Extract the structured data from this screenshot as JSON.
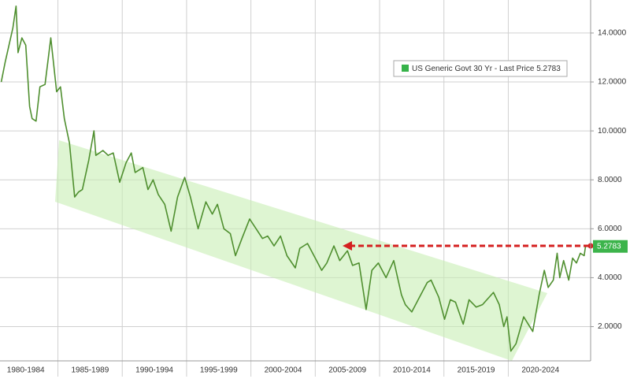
{
  "chart_data": {
    "type": "line",
    "x": [
      1980.6,
      1980.9,
      1981.2,
      1981.5,
      1981.75,
      1981.9,
      1982.2,
      1982.5,
      1982.8,
      1983.0,
      1983.3,
      1983.6,
      1984.0,
      1984.45,
      1984.9,
      1985.2,
      1985.5,
      1985.9,
      1986.3,
      1986.6,
      1986.9,
      1987.4,
      1987.8,
      1987.95,
      1988.5,
      1988.9,
      1989.3,
      1989.8,
      1990.3,
      1990.7,
      1991.0,
      1991.6,
      1992.0,
      1992.4,
      1992.8,
      1993.3,
      1993.8,
      1994.3,
      1994.85,
      1995.3,
      1995.9,
      1996.5,
      1997.0,
      1997.4,
      1997.9,
      1998.4,
      1998.8,
      1999.3,
      1999.9,
      2000.4,
      2000.9,
      2001.3,
      2001.8,
      2002.3,
      2002.8,
      2003.45,
      2003.8,
      2004.4,
      2004.9,
      2005.5,
      2005.9,
      2006.45,
      2006.9,
      2007.5,
      2007.9,
      2008.4,
      2008.95,
      2009.4,
      2009.9,
      2010.5,
      2011.1,
      2011.7,
      2012.0,
      2012.5,
      2013.0,
      2013.7,
      2014.0,
      2014.6,
      2015.05,
      2015.5,
      2015.9,
      2016.5,
      2016.95,
      2017.5,
      2018.0,
      2018.85,
      2019.3,
      2019.65,
      2019.9,
      2020.2,
      2020.6,
      2021.2,
      2021.9,
      2022.4,
      2022.8,
      2023.1,
      2023.5,
      2023.8,
      2024.0,
      2024.3,
      2024.7,
      2025.0,
      2025.3,
      2025.6,
      2025.9,
      2026.0
    ],
    "series": [
      {
        "name": "US Generic Govt 30 Yr - Last Price 5.2783",
        "color": "#4f8f2f",
        "values": [
          12.0,
          12.8,
          13.5,
          14.2,
          15.1,
          13.2,
          13.8,
          13.5,
          11.0,
          10.5,
          10.4,
          11.8,
          11.9,
          13.8,
          11.6,
          11.8,
          10.5,
          9.5,
          7.3,
          7.5,
          7.6,
          8.8,
          10.0,
          9.0,
          9.2,
          9.0,
          9.1,
          7.9,
          8.7,
          9.1,
          8.3,
          8.5,
          7.6,
          8.0,
          7.4,
          7.0,
          5.9,
          7.3,
          8.1,
          7.3,
          6.0,
          7.1,
          6.6,
          7.0,
          6.0,
          5.8,
          4.9,
          5.6,
          6.4,
          6.0,
          5.6,
          5.7,
          5.3,
          5.7,
          4.9,
          4.4,
          5.2,
          5.4,
          4.9,
          4.3,
          4.6,
          5.3,
          4.7,
          5.1,
          4.5,
          4.6,
          2.7,
          4.3,
          4.6,
          4.0,
          4.7,
          3.3,
          2.9,
          2.6,
          3.1,
          3.8,
          3.9,
          3.2,
          2.3,
          3.1,
          3.0,
          2.1,
          3.1,
          2.8,
          2.9,
          3.4,
          2.9,
          2.0,
          2.4,
          1.0,
          1.3,
          2.4,
          1.8,
          3.3,
          4.3,
          3.6,
          3.9,
          5.0,
          4.0,
          4.7,
          3.9,
          4.8,
          4.6,
          5.0,
          4.9,
          5.2783
        ]
      }
    ],
    "xlim": [
      1980.5,
      2026.4
    ],
    "xticks": [
      {
        "value": 1982.5,
        "label": "1980-1984"
      },
      {
        "value": 1987.5,
        "label": "1985-1989"
      },
      {
        "value": 1992.5,
        "label": "1990-1994"
      },
      {
        "value": 1997.5,
        "label": "1995-1999"
      },
      {
        "value": 2002.5,
        "label": "2000-2004"
      },
      {
        "value": 2007.5,
        "label": "2005-2009"
      },
      {
        "value": 2012.5,
        "label": "2010-2014"
      },
      {
        "value": 2017.5,
        "label": "2015-2019"
      },
      {
        "value": 2022.5,
        "label": "2020-2024"
      }
    ],
    "ylim": [
      0.6,
      15.35
    ],
    "yticks": [
      {
        "value": 2,
        "label": "2.0000"
      },
      {
        "value": 4,
        "label": "4.0000"
      },
      {
        "value": 6,
        "label": "6.0000"
      },
      {
        "value": 8,
        "label": "8.0000"
      },
      {
        "value": 10,
        "label": "10.0000"
      },
      {
        "value": 12,
        "label": "12.0000"
      },
      {
        "value": 14,
        "label": "14.0000"
      }
    ],
    "grid": true
  }
}
